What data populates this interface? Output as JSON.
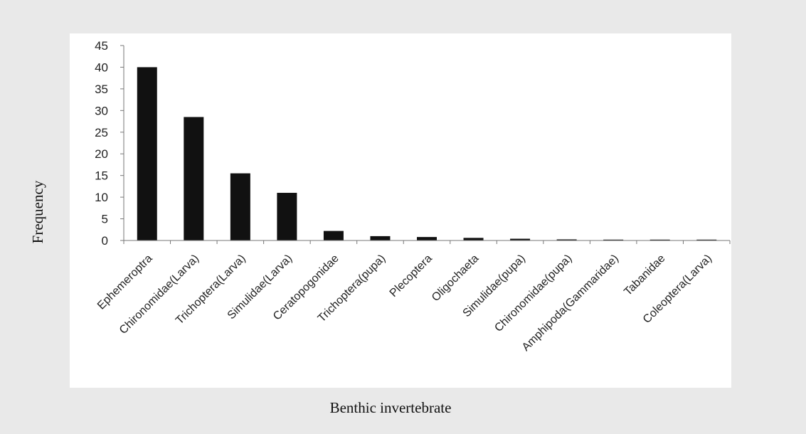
{
  "chart_data": {
    "type": "bar",
    "xlabel": "Benthic invertebrate",
    "ylabel": "Frequency",
    "ylim": [
      0,
      45
    ],
    "yticks": [
      0,
      5,
      10,
      15,
      20,
      25,
      30,
      35,
      40,
      45
    ],
    "grid": false,
    "legend": "none",
    "bar_color": "#111111",
    "categories": [
      "Ephemeroptra",
      "Chironomidae(Larva)",
      "Trichoptera(Larva)",
      "Simulidae(Larva)",
      "Ceratopogonidae",
      "Trichoptera(pupa)",
      "Plecoptera",
      "Oligochaeta",
      "Simulidae(pupa)",
      "Chironomidae(pupa)",
      "Amphipoda(Gammaridae)",
      "Tabanidae",
      "Coleoptera(Larva)"
    ],
    "values": [
      40,
      28.5,
      15.5,
      11,
      2.2,
      1,
      0.8,
      0.6,
      0.4,
      0.25,
      0.2,
      0.2,
      0.2
    ]
  }
}
